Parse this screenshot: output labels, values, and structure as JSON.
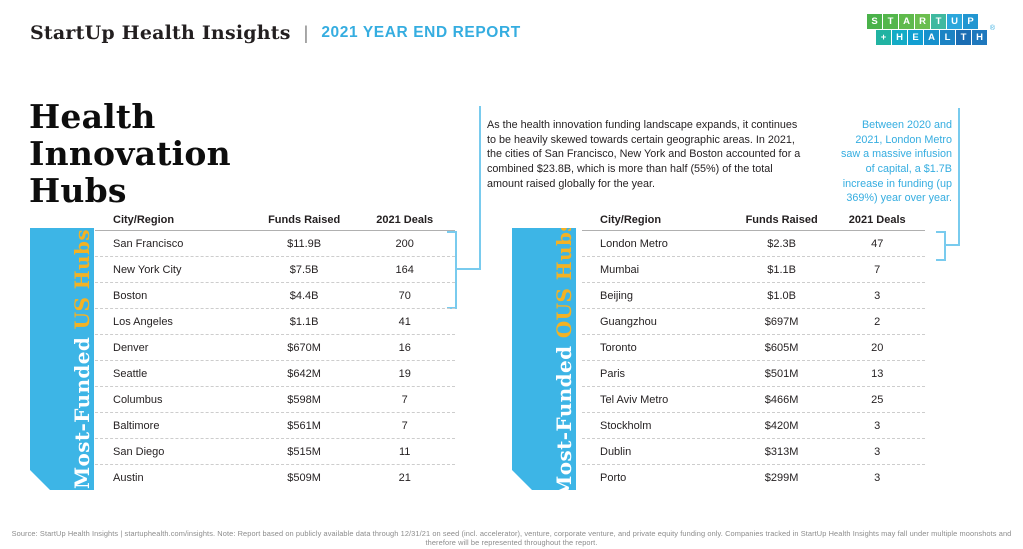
{
  "colors": {
    "accent-blue": "#35ADE0",
    "ribbon-blue": "#3DB5E6",
    "accent-yellow": "#F4B223",
    "text-dark": "#231F20",
    "line-blue": "#79CBEE"
  },
  "header": {
    "brand": "StartUp Health Insights",
    "divider": "|",
    "report_title": "2021 YEAR END REPORT"
  },
  "logo": {
    "registered": "®",
    "rows": [
      {
        "letters": [
          "S",
          "T",
          "A",
          "R",
          "T",
          "U",
          "P"
        ],
        "colors": [
          "#4AB24A",
          "#53B64B",
          "#5FBA4C",
          "#6BBE4E",
          "#3FB9A0",
          "#2CA7DC",
          "#2196D1"
        ]
      },
      {
        "letters": [
          "+",
          "H",
          "E",
          "A",
          "L",
          "T",
          "H"
        ],
        "colors": [
          "#21B3A2",
          "#14ABC6",
          "#129FD2",
          "#1791CD",
          "#1C83C4",
          "#1A6DB3",
          "#1E78BD"
        ]
      }
    ]
  },
  "title": "Health\nInnovation\nHubs",
  "annotations": {
    "intro": "As the health innovation funding landscape expands, it continues to be heavily skewed towards certain geographic areas. In 2021, the cities of San Francisco, New York and Boston accounted for a combined $23.8B, which is more than half (55%) of the total amount raised globally for the year.",
    "london": "Between 2020 and 2021, London Metro saw a massive infusion of capital, a $1.7B increase in funding (up 369%) year over year."
  },
  "us_table": {
    "ribbon_white": "Most-Funded ",
    "ribbon_accent": "US Hubs",
    "headers": [
      "City/Region",
      "Funds Raised",
      "2021 Deals"
    ],
    "rows": [
      [
        "San Francisco",
        "$11.9B",
        "200"
      ],
      [
        "New York City",
        "$7.5B",
        "164"
      ],
      [
        "Boston",
        "$4.4B",
        "70"
      ],
      [
        "Los Angeles",
        "$1.1B",
        "41"
      ],
      [
        "Denver",
        "$670M",
        "16"
      ],
      [
        "Seattle",
        "$642M",
        "19"
      ],
      [
        "Columbus",
        "$598M",
        "7"
      ],
      [
        "Baltimore",
        "$561M",
        "7"
      ],
      [
        "San Diego",
        "$515M",
        "11"
      ],
      [
        "Austin",
        "$509M",
        "21"
      ]
    ]
  },
  "ous_table": {
    "ribbon_white": "Most-Funded ",
    "ribbon_accent": "OUS Hubs",
    "headers": [
      "City/Region",
      "Funds Raised",
      "2021 Deals"
    ],
    "rows": [
      [
        "London Metro",
        "$2.3B",
        "47"
      ],
      [
        "Mumbai",
        "$1.1B",
        "7"
      ],
      [
        "Beijing",
        "$1.0B",
        "3"
      ],
      [
        "Guangzhou",
        "$697M",
        "2"
      ],
      [
        "Toronto",
        "$605M",
        "20"
      ],
      [
        "Paris",
        "$501M",
        "13"
      ],
      [
        "Tel Aviv Metro",
        "$466M",
        "25"
      ],
      [
        "Stockholm",
        "$420M",
        "3"
      ],
      [
        "Dublin",
        "$313M",
        "3"
      ],
      [
        "Porto",
        "$299M",
        "3"
      ]
    ]
  },
  "footer": "Source: StartUp Health Insights | startuphealth.com/insights. Note: Report based on publicly available data through 12/31/21 on seed (incl. accelerator), venture, corporate venture, and private equity funding only. Companies tracked in StartUp Health Insights may fall under multiple moonshots and therefore will be represented throughout the report."
}
